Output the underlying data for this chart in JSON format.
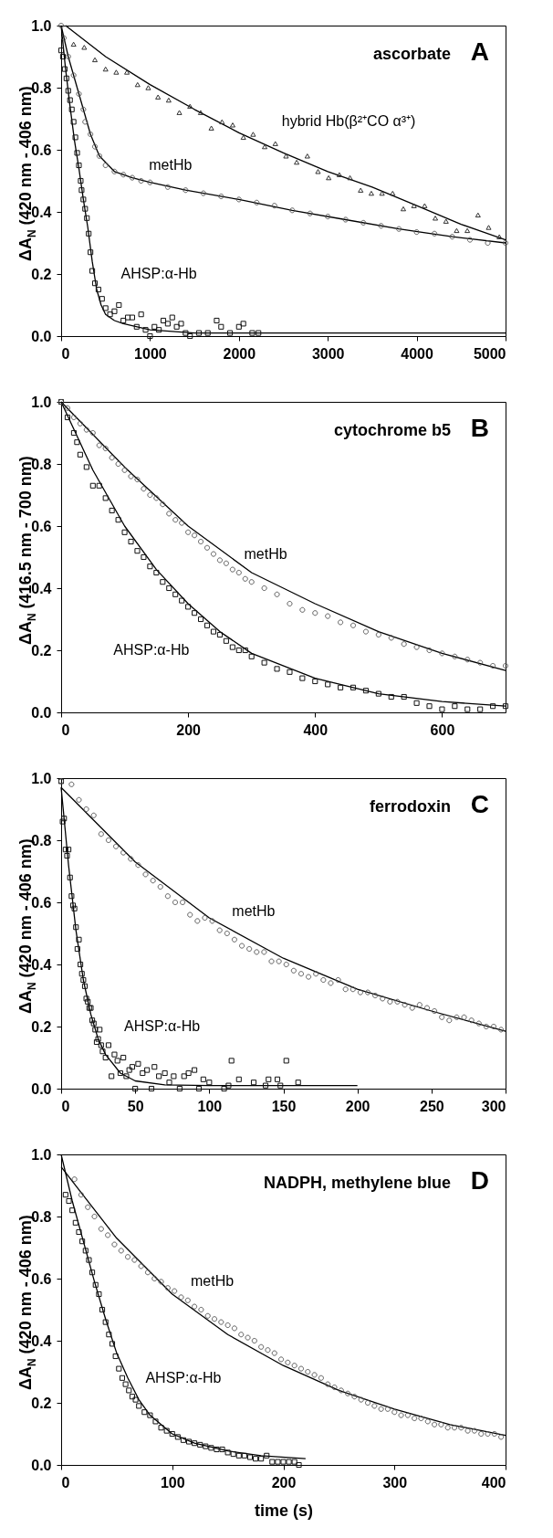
{
  "chart_data": [
    {
      "type": "scatter",
      "title": "ascorbate",
      "ylabel": "ΔA$_{N}$ (420 nm - 406 nm)",
      "xlim": [
        0,
        5000
      ],
      "xticks": [
        0,
        1000,
        2000,
        3000,
        4000,
        5000
      ],
      "ylim": [
        0,
        1
      ],
      "yticks": [
        {
          "value": 0,
          "label": "0.0"
        },
        {
          "value": 0.2,
          "label": "0.2"
        },
        {
          "value": 0.4,
          "label": "0.4"
        },
        {
          "value": 0.6,
          "label": "0.6"
        },
        {
          "value": 0.8,
          "label": "0.8"
        },
        {
          "value": 1,
          "label": "1.0"
        }
      ],
      "annotations": [
        "A"
      ],
      "series": [
        {
          "name": "hybrid Hb(β²⁺CO α³⁺)",
          "marker": "triangle",
          "color": "#333333",
          "x": [
            140,
            260,
            380,
            500,
            620,
            740,
            860,
            980,
            1090,
            1210,
            1330,
            1450,
            1570,
            1690,
            1810,
            1930,
            2050,
            2160,
            2290,
            2410,
            2530,
            2650,
            2770,
            2890,
            3010,
            3130,
            3250,
            3370,
            3490,
            3610,
            3730,
            3850,
            3970,
            4090,
            4210,
            4330,
            4450,
            4570,
            4690,
            4810,
            4930
          ],
          "values": [
            0.94,
            0.93,
            0.89,
            0.86,
            0.85,
            0.85,
            0.81,
            0.8,
            0.77,
            0.76,
            0.72,
            0.74,
            0.72,
            0.67,
            0.69,
            0.68,
            0.64,
            0.65,
            0.61,
            0.62,
            0.58,
            0.56,
            0.58,
            0.53,
            0.51,
            0.52,
            0.51,
            0.47,
            0.46,
            0.46,
            0.46,
            0.41,
            0.42,
            0.42,
            0.38,
            0.37,
            0.34,
            0.34,
            0.39,
            0.35,
            0.32
          ]
        },
        {
          "name": "metHb",
          "marker": "circle",
          "color": "#555555",
          "x": [
            0,
            30,
            80,
            140,
            200,
            250,
            270,
            330,
            380,
            430,
            500,
            600,
            700,
            800,
            900,
            1000,
            1200,
            1400,
            1600,
            1800,
            2000,
            2200,
            2400,
            2600,
            2800,
            3000,
            3200,
            3400,
            3600,
            3800,
            4000,
            4200,
            4400,
            4600,
            4800,
            5000
          ],
          "values": [
            1.0,
            0.96,
            0.9,
            0.84,
            0.78,
            0.73,
            0.69,
            0.65,
            0.61,
            0.58,
            0.55,
            0.53,
            0.52,
            0.51,
            0.5,
            0.495,
            0.48,
            0.47,
            0.46,
            0.45,
            0.44,
            0.43,
            0.42,
            0.405,
            0.395,
            0.385,
            0.375,
            0.365,
            0.355,
            0.345,
            0.335,
            0.33,
            0.32,
            0.31,
            0.3,
            0.3
          ]
        },
        {
          "name": "AHSP:α-Hb",
          "marker": "square",
          "color": "#111111",
          "x": [
            0,
            20,
            40,
            60,
            80,
            100,
            120,
            140,
            160,
            180,
            200,
            220,
            230,
            250,
            270,
            290,
            310,
            330,
            350,
            380,
            420,
            460,
            500,
            550,
            600,
            650,
            700,
            750,
            800,
            850,
            900,
            950,
            1000,
            1050,
            1100,
            1150,
            1200,
            1250,
            1300,
            1350,
            1400,
            1450,
            1550,
            1650,
            1750,
            1800,
            1900,
            2000,
            2050,
            2150,
            2220
          ],
          "values": [
            0.92,
            0.9,
            0.86,
            0.83,
            0.79,
            0.76,
            0.73,
            0.69,
            0.64,
            0.59,
            0.55,
            0.5,
            0.47,
            0.44,
            0.41,
            0.38,
            0.33,
            0.27,
            0.21,
            0.17,
            0.15,
            0.12,
            0.09,
            0.07,
            0.08,
            0.1,
            0.05,
            0.06,
            0.06,
            0.03,
            0.07,
            0.02,
            0.0,
            0.03,
            0.02,
            0.05,
            0.04,
            0.06,
            0.03,
            0.04,
            0.01,
            0.0,
            0.01,
            0.01,
            0.05,
            0.03,
            0.01,
            0.03,
            0.04,
            0.01,
            0.01
          ]
        },
        {
          "type": "line",
          "color": "#000000",
          "x": [
            50,
            500,
            1000,
            1500,
            2000,
            2500,
            3000,
            3500,
            4000,
            4500,
            5000
          ],
          "values": [
            1.0,
            0.9,
            0.81,
            0.73,
            0.655,
            0.59,
            0.53,
            0.48,
            0.42,
            0.36,
            0.31
          ]
        },
        {
          "type": "line",
          "color": "#000000",
          "x": [
            0,
            80,
            200,
            330,
            430,
            600,
            800,
            1000,
            1400,
            2000,
            2600,
            3200,
            3800,
            4400,
            5000
          ],
          "values": [
            1.0,
            0.9,
            0.78,
            0.65,
            0.58,
            0.53,
            0.51,
            0.495,
            0.47,
            0.44,
            0.405,
            0.375,
            0.345,
            0.32,
            0.3
          ]
        },
        {
          "type": "line",
          "color": "#000000",
          "x": [
            0,
            50,
            100,
            150,
            200,
            250,
            300,
            350,
            400,
            450,
            500,
            600,
            700,
            1000,
            1500,
            5000
          ],
          "values": [
            1.0,
            0.86,
            0.74,
            0.63,
            0.54,
            0.44,
            0.35,
            0.24,
            0.15,
            0.1,
            0.07,
            0.05,
            0.04,
            0.02,
            0.01,
            0.01
          ]
        }
      ]
    },
    {
      "type": "scatter",
      "title": "cytochrome b5",
      "ylabel": "ΔA$_{N}$ (416.5 nm - 700 nm)",
      "xlim": [
        0,
        700
      ],
      "xticks": [
        0,
        200,
        400,
        600
      ],
      "ylim": [
        0,
        1
      ],
      "yticks": [
        {
          "value": 0,
          "label": "0.0"
        },
        {
          "value": 0.2,
          "label": "0.2"
        },
        {
          "value": 0.4,
          "label": "0.4"
        },
        {
          "value": 0.6,
          "label": "0.6"
        },
        {
          "value": 0.8,
          "label": "0.8"
        },
        {
          "value": 1,
          "label": "1.0"
        }
      ],
      "annotations": [
        "B"
      ],
      "series": [
        {
          "name": "metHb",
          "marker": "circle",
          "color": "#555555",
          "x": [
            0,
            10,
            20,
            30,
            40,
            50,
            60,
            70,
            80,
            90,
            100,
            110,
            120,
            130,
            140,
            150,
            160,
            170,
            180,
            190,
            200,
            210,
            220,
            230,
            240,
            250,
            260,
            270,
            280,
            290,
            300,
            320,
            340,
            360,
            380,
            400,
            420,
            440,
            460,
            480,
            500,
            520,
            540,
            560,
            580,
            600,
            620,
            640,
            660,
            680,
            700
          ],
          "values": [
            1.0,
            0.98,
            0.95,
            0.93,
            0.91,
            0.9,
            0.86,
            0.85,
            0.82,
            0.8,
            0.78,
            0.76,
            0.75,
            0.72,
            0.7,
            0.69,
            0.67,
            0.64,
            0.62,
            0.61,
            0.58,
            0.57,
            0.55,
            0.53,
            0.51,
            0.49,
            0.48,
            0.46,
            0.45,
            0.43,
            0.42,
            0.4,
            0.38,
            0.35,
            0.33,
            0.32,
            0.31,
            0.29,
            0.28,
            0.26,
            0.25,
            0.24,
            0.22,
            0.21,
            0.2,
            0.19,
            0.18,
            0.17,
            0.16,
            0.15,
            0.15
          ]
        },
        {
          "name": "AHSP:α-Hb",
          "marker": "square",
          "color": "#111111",
          "x": [
            0,
            10,
            20,
            25,
            30,
            40,
            50,
            60,
            70,
            80,
            90,
            100,
            110,
            120,
            130,
            140,
            150,
            160,
            170,
            180,
            190,
            200,
            210,
            220,
            230,
            240,
            250,
            260,
            270,
            280,
            290,
            300,
            320,
            340,
            360,
            380,
            400,
            420,
            440,
            460,
            480,
            500,
            520,
            540,
            560,
            580,
            600,
            620,
            640,
            660,
            680,
            700
          ],
          "values": [
            1.0,
            0.95,
            0.9,
            0.87,
            0.83,
            0.79,
            0.73,
            0.73,
            0.69,
            0.65,
            0.62,
            0.58,
            0.55,
            0.52,
            0.5,
            0.47,
            0.45,
            0.42,
            0.4,
            0.38,
            0.36,
            0.34,
            0.32,
            0.3,
            0.28,
            0.26,
            0.25,
            0.23,
            0.21,
            0.2,
            0.2,
            0.18,
            0.16,
            0.14,
            0.13,
            0.11,
            0.1,
            0.09,
            0.08,
            0.08,
            0.07,
            0.06,
            0.05,
            0.05,
            0.03,
            0.02,
            0.01,
            0.02,
            0.01,
            0.01,
            0.02,
            0.02
          ]
        },
        {
          "type": "line",
          "color": "#000000",
          "x": [
            0,
            100,
            200,
            300,
            400,
            500,
            600,
            700
          ],
          "values": [
            1.0,
            0.79,
            0.6,
            0.45,
            0.35,
            0.26,
            0.19,
            0.135
          ]
        },
        {
          "type": "line",
          "color": "#000000",
          "x": [
            0,
            50,
            100,
            150,
            200,
            250,
            300,
            400,
            500,
            600,
            700
          ],
          "values": [
            1.0,
            0.78,
            0.6,
            0.46,
            0.35,
            0.26,
            0.19,
            0.11,
            0.06,
            0.035,
            0.02
          ]
        }
      ]
    },
    {
      "type": "scatter",
      "title": "ferrodoxin",
      "ylabel": "ΔA$_{N}$ (420 nm - 406 nm)",
      "xlim": [
        0,
        300
      ],
      "xticks": [
        0,
        50,
        100,
        150,
        200,
        250,
        300
      ],
      "ylim": [
        0,
        1
      ],
      "yticks": [
        {
          "value": 0,
          "label": "0.0"
        },
        {
          "value": 0.2,
          "label": "0.2"
        },
        {
          "value": 0.4,
          "label": "0.4"
        },
        {
          "value": 0.6,
          "label": "0.6"
        },
        {
          "value": 0.8,
          "label": "0.8"
        },
        {
          "value": 1,
          "label": "1.0"
        }
      ],
      "annotations": [
        "C"
      ],
      "series": [
        {
          "name": "metHb",
          "marker": "circle",
          "color": "#555555",
          "x": [
            0,
            7,
            12,
            17,
            22,
            27,
            32,
            37,
            42,
            47,
            52,
            57,
            62,
            67,
            72,
            77,
            82,
            87,
            92,
            97,
            102,
            107,
            112,
            117,
            122,
            127,
            132,
            137,
            142,
            147,
            152,
            157,
            162,
            167,
            172,
            177,
            182,
            187,
            192,
            197,
            202,
            207,
            212,
            217,
            222,
            227,
            232,
            237,
            242,
            247,
            252,
            257,
            262,
            267,
            272,
            277,
            282,
            287,
            292,
            297
          ],
          "values": [
            0.99,
            0.98,
            0.93,
            0.9,
            0.88,
            0.82,
            0.8,
            0.78,
            0.76,
            0.74,
            0.72,
            0.69,
            0.67,
            0.65,
            0.62,
            0.6,
            0.6,
            0.56,
            0.54,
            0.55,
            0.54,
            0.51,
            0.5,
            0.48,
            0.46,
            0.45,
            0.44,
            0.44,
            0.41,
            0.41,
            0.4,
            0.38,
            0.37,
            0.36,
            0.37,
            0.35,
            0.34,
            0.35,
            0.32,
            0.32,
            0.31,
            0.31,
            0.3,
            0.29,
            0.28,
            0.28,
            0.27,
            0.26,
            0.27,
            0.26,
            0.25,
            0.23,
            0.22,
            0.23,
            0.23,
            0.22,
            0.21,
            0.2,
            0.2,
            0.19
          ]
        },
        {
          "name": "AHSP:α-Hb",
          "marker": "square",
          "color": "#111111",
          "x": [
            0,
            1,
            2,
            3,
            4,
            5,
            6,
            7,
            8,
            9,
            10,
            11,
            12,
            13,
            14,
            15,
            16,
            17,
            18,
            19,
            20,
            21,
            22,
            23,
            24,
            25,
            26,
            27,
            28,
            30,
            32,
            34,
            36,
            38,
            40,
            42,
            44,
            46,
            48,
            50,
            52,
            55,
            58,
            61,
            63,
            66,
            70,
            73,
            76,
            80,
            83,
            86,
            90,
            93,
            96,
            100,
            110,
            113,
            115,
            120,
            130,
            138,
            140,
            146,
            148,
            152,
            160
          ],
          "values": [
            0.99,
            0.86,
            0.87,
            0.77,
            0.75,
            0.77,
            0.68,
            0.62,
            0.59,
            0.58,
            0.52,
            0.45,
            0.48,
            0.4,
            0.37,
            0.35,
            0.33,
            0.29,
            0.28,
            0.26,
            0.26,
            0.22,
            0.21,
            0.19,
            0.15,
            0.16,
            0.19,
            0.14,
            0.12,
            0.1,
            0.14,
            0.04,
            0.11,
            0.09,
            0.05,
            0.1,
            0.04,
            0.06,
            0.07,
            0.0,
            0.08,
            0.05,
            0.06,
            0.0,
            0.07,
            0.04,
            0.05,
            0.02,
            0.04,
            0.0,
            0.04,
            0.05,
            0.06,
            0.0,
            0.03,
            0.02,
            0.0,
            0.01,
            0.09,
            0.03,
            0.02,
            0.01,
            0.03,
            0.03,
            0.01,
            0.09,
            0.02
          ]
        },
        {
          "type": "line",
          "color": "#000000",
          "x": [
            0,
            50,
            100,
            150,
            200,
            250,
            300
          ],
          "values": [
            0.97,
            0.73,
            0.55,
            0.42,
            0.32,
            0.25,
            0.185
          ]
        },
        {
          "type": "line",
          "color": "#000000",
          "x": [
            0,
            5,
            10,
            15,
            20,
            25,
            30,
            40,
            50,
            70,
            100,
            200
          ],
          "values": [
            0.97,
            0.72,
            0.51,
            0.35,
            0.24,
            0.16,
            0.11,
            0.05,
            0.025,
            0.012,
            0.01,
            0.01
          ]
        }
      ]
    },
    {
      "type": "scatter",
      "title": "NADPH, methylene blue",
      "xlabel": "time (s)",
      "ylabel": "ΔA$_{N}$ (420 nm - 406 nm)",
      "xlim": [
        0,
        400
      ],
      "xticks": [
        0,
        100,
        200,
        300,
        400
      ],
      "ylim": [
        0,
        1
      ],
      "yticks": [
        {
          "value": 0,
          "label": "0.0"
        },
        {
          "value": 0.2,
          "label": "0.2"
        },
        {
          "value": 0.4,
          "label": "0.4"
        },
        {
          "value": 0.6,
          "label": "0.6"
        },
        {
          "value": 0.8,
          "label": "0.8"
        },
        {
          "value": 1,
          "label": "1.0"
        }
      ],
      "annotations": [
        "D"
      ],
      "series": [
        {
          "name": "metHb",
          "marker": "circle",
          "color": "#555555",
          "x": [
            12,
            18,
            24,
            30,
            36,
            42,
            48,
            54,
            60,
            66,
            72,
            78,
            84,
            90,
            96,
            102,
            108,
            114,
            120,
            126,
            132,
            138,
            144,
            150,
            156,
            162,
            168,
            174,
            180,
            186,
            192,
            198,
            204,
            210,
            216,
            222,
            228,
            234,
            240,
            246,
            252,
            258,
            264,
            270,
            276,
            282,
            288,
            294,
            300,
            306,
            312,
            318,
            324,
            330,
            336,
            342,
            348,
            354,
            360,
            366,
            372,
            378,
            384,
            390,
            396
          ],
          "values": [
            0.92,
            0.87,
            0.83,
            0.8,
            0.76,
            0.74,
            0.71,
            0.69,
            0.67,
            0.66,
            0.64,
            0.62,
            0.6,
            0.59,
            0.57,
            0.56,
            0.54,
            0.53,
            0.51,
            0.5,
            0.48,
            0.47,
            0.46,
            0.45,
            0.44,
            0.42,
            0.41,
            0.4,
            0.38,
            0.37,
            0.36,
            0.34,
            0.33,
            0.32,
            0.31,
            0.3,
            0.29,
            0.28,
            0.26,
            0.25,
            0.24,
            0.23,
            0.22,
            0.21,
            0.2,
            0.19,
            0.18,
            0.18,
            0.17,
            0.16,
            0.16,
            0.15,
            0.15,
            0.14,
            0.13,
            0.13,
            0.12,
            0.12,
            0.12,
            0.11,
            0.11,
            0.1,
            0.1,
            0.1,
            0.09
          ]
        },
        {
          "name": "AHSP:α-Hb",
          "marker": "square",
          "color": "#111111",
          "x": [
            4,
            7,
            10,
            13,
            16,
            19,
            22,
            25,
            28,
            31,
            34,
            37,
            40,
            43,
            46,
            49,
            52,
            55,
            58,
            61,
            64,
            67,
            70,
            75,
            80,
            85,
            90,
            95,
            100,
            105,
            110,
            115,
            120,
            125,
            130,
            135,
            140,
            145,
            150,
            155,
            160,
            165,
            170,
            175,
            180,
            185,
            190,
            195,
            200,
            205,
            210,
            214
          ],
          "values": [
            0.87,
            0.85,
            0.82,
            0.78,
            0.75,
            0.72,
            0.69,
            0.66,
            0.62,
            0.58,
            0.55,
            0.5,
            0.46,
            0.42,
            0.39,
            0.35,
            0.31,
            0.28,
            0.26,
            0.24,
            0.22,
            0.21,
            0.19,
            0.17,
            0.16,
            0.14,
            0.12,
            0.11,
            0.1,
            0.09,
            0.08,
            0.075,
            0.07,
            0.065,
            0.06,
            0.055,
            0.05,
            0.05,
            0.04,
            0.035,
            0.03,
            0.03,
            0.025,
            0.02,
            0.02,
            0.03,
            0.01,
            0.01,
            0.01,
            0.01,
            0.01,
            0.0
          ]
        },
        {
          "type": "line",
          "color": "#000000",
          "x": [
            0,
            50,
            100,
            150,
            200,
            250,
            300,
            350,
            400
          ],
          "values": [
            0.96,
            0.73,
            0.55,
            0.42,
            0.32,
            0.24,
            0.18,
            0.13,
            0.095
          ]
        },
        {
          "type": "line",
          "color": "#000000",
          "x": [
            0,
            10,
            20,
            30,
            40,
            50,
            60,
            70,
            80,
            100,
            120,
            150,
            180,
            220
          ],
          "values": [
            1.0,
            0.85,
            0.72,
            0.59,
            0.47,
            0.36,
            0.28,
            0.21,
            0.16,
            0.1,
            0.07,
            0.045,
            0.03,
            0.02
          ]
        }
      ]
    }
  ]
}
